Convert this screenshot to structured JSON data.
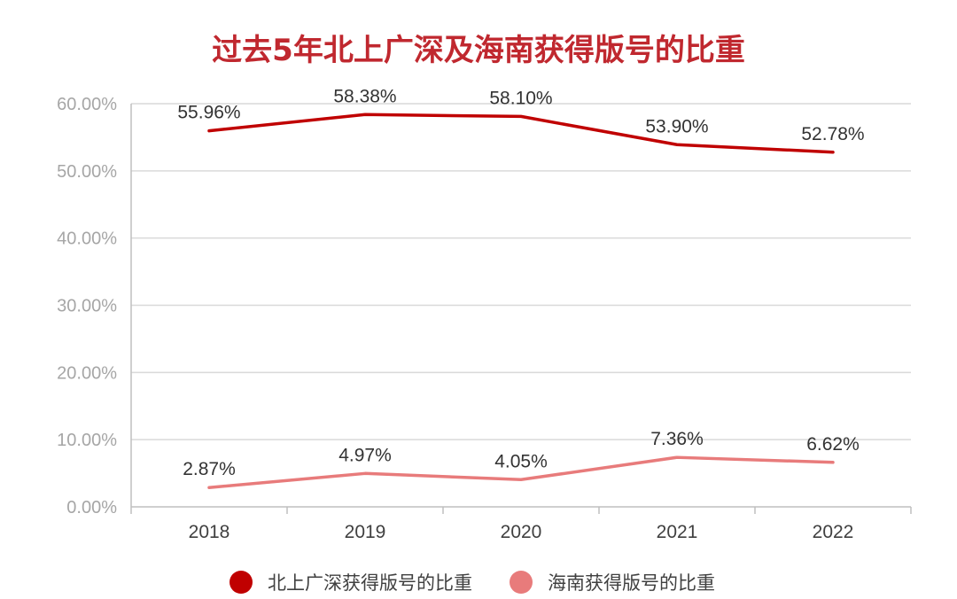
{
  "chart_data": {
    "type": "line",
    "title": "过去5年北上广深及海南获得版号的比重",
    "categories": [
      "2018",
      "2019",
      "2020",
      "2021",
      "2022"
    ],
    "series": [
      {
        "name": "北上广深获得版号的比重",
        "values": [
          55.96,
          58.38,
          58.1,
          53.9,
          52.78
        ],
        "labels": [
          "55.96%",
          "58.38%",
          "58.10%",
          "53.90%",
          "52.78%"
        ],
        "color": "#c00000"
      },
      {
        "name": "海南获得版号的比重",
        "values": [
          2.87,
          4.97,
          4.05,
          7.36,
          6.62
        ],
        "labels": [
          "2.87%",
          "4.97%",
          "4.05%",
          "7.36%",
          "6.62%"
        ],
        "color": "#e87b7b"
      }
    ],
    "ylim": [
      0,
      60
    ],
    "yticks": [
      "0.00%",
      "10.00%",
      "20.00%",
      "30.00%",
      "40.00%",
      "50.00%",
      "60.00%"
    ],
    "grid": true,
    "legend_position": "bottom",
    "title_color": "#c0282f"
  }
}
